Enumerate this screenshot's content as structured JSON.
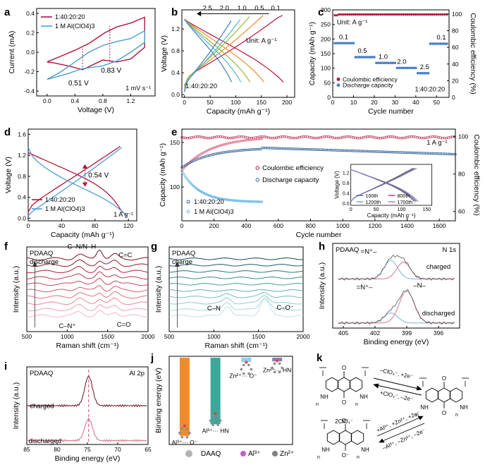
{
  "chart_data": [
    {
      "panel": "a",
      "type": "line",
      "xlabel": "Voltage (V)",
      "ylabel": "Current (mA)",
      "xlim": [
        -0.15,
        1.55
      ],
      "ylim": [
        -0.45,
        0.45
      ],
      "xticks": [
        0.0,
        0.4,
        0.8,
        1.2
      ],
      "yticks": [
        -0.4,
        -0.2,
        0.0,
        0.2,
        0.4
      ],
      "legend": [
        "1:40:20:20",
        "1 M Al(ClO4)3"
      ],
      "annotations": [
        "0.51 V",
        "0.83 V",
        "1 mV s⁻¹"
      ],
      "series": [
        {
          "name": "1:40:20:20",
          "x": [
            0,
            0.2,
            0.4,
            0.6,
            0.83,
            1.0,
            1.2,
            1.4,
            1.4,
            1.2,
            1.0,
            0.8,
            0.51,
            0.3,
            0.1,
            0
          ],
          "y": [
            -0.1,
            -0.04,
            0.02,
            0.09,
            0.2,
            0.26,
            0.3,
            0.36,
            0.05,
            -0.07,
            -0.1,
            -0.08,
            -0.18,
            -0.14,
            -0.11,
            -0.1
          ]
        },
        {
          "name": "1 M Al(ClO4)3",
          "x": [
            0,
            0.2,
            0.4,
            0.6,
            0.8,
            1.0,
            1.2,
            1.4,
            1.4,
            1.2,
            1.0,
            0.8,
            0.5,
            0.3,
            0.1,
            0
          ],
          "y": [
            -0.28,
            -0.2,
            -0.1,
            0.0,
            0.07,
            0.11,
            0.14,
            0.22,
            0.1,
            0.0,
            -0.09,
            -0.14,
            -0.17,
            -0.22,
            -0.26,
            -0.28
          ]
        }
      ]
    },
    {
      "panel": "b",
      "type": "line",
      "xlabel": "Capacity (mAh g⁻¹)",
      "ylabel": "Voltage (V)",
      "xlim": [
        -5,
        215
      ],
      "ylim": [
        -0.05,
        1.55
      ],
      "xticks": [
        0,
        50,
        100,
        150,
        200
      ],
      "yticks": [
        0.0,
        0.4,
        0.8,
        1.2
      ],
      "rate_labels": [
        "2.5",
        "2.0",
        "1.0",
        "0.5",
        "0.1"
      ],
      "unit_label": "Unit: A g⁻¹",
      "sample_label": "1:40:20:20",
      "series": [
        {
          "name": "0.1",
          "capacity": 193
        },
        {
          "name": "0.5",
          "capacity": 155
        },
        {
          "name": "1.0",
          "capacity": 128
        },
        {
          "name": "2.0",
          "capacity": 110
        },
        {
          "name": "2.5",
          "capacity": 92
        }
      ]
    },
    {
      "panel": "c",
      "type": "scatter",
      "xlabel": "Cycle number",
      "ylabel": "Capacity (mAh g⁻¹)",
      "y2label": "Coulombic efficiency (%)",
      "xlim": [
        0,
        56
      ],
      "ylim": [
        0,
        300
      ],
      "y2lim": [
        0,
        105
      ],
      "xticks": [
        0,
        10,
        20,
        30,
        40,
        50
      ],
      "yticks": [
        0,
        50,
        100,
        150,
        200,
        250,
        300
      ],
      "y2ticks": [
        0,
        20,
        40,
        60,
        80,
        100
      ],
      "unit_label": "Unit: A g⁻¹",
      "sample_label": "1:40:20:20",
      "legend": [
        "Coulombic efficiency",
        "Discharge capacity"
      ],
      "rate_labels": [
        "0.1",
        "0.5",
        "1.0",
        "2.0",
        "2.5",
        "0.1"
      ],
      "segments": [
        {
          "cycles": [
            1,
            10
          ],
          "capacity": 186
        },
        {
          "cycles": [
            11,
            20
          ],
          "capacity": 138
        },
        {
          "cycles": [
            21,
            30
          ],
          "capacity": 118
        },
        {
          "cycles": [
            31,
            40
          ],
          "capacity": 101
        },
        {
          "cycles": [
            41,
            46
          ],
          "capacity": 83
        },
        {
          "cycles": [
            47,
            55
          ],
          "capacity": 184
        }
      ],
      "efficiency": 99.5
    },
    {
      "panel": "d",
      "type": "line",
      "xlabel": "Capacity (mAh g⁻¹)",
      "ylabel": "Voltage (V)",
      "xlim": [
        0,
        130
      ],
      "ylim": [
        -0.05,
        1.7
      ],
      "xticks": [
        0,
        40,
        80,
        120
      ],
      "yticks": [
        0.0,
        0.4,
        0.8,
        1.2,
        1.6
      ],
      "legend": [
        "1:40:20:20",
        "1 M Al(ClO4)3"
      ],
      "annotations": [
        "0.54 V",
        "1 A g⁻¹"
      ]
    },
    {
      "panel": "e",
      "type": "scatter",
      "xlabel": "Cycle number",
      "ylabel": "Capacity (mAh g⁻¹)",
      "y2label": "Coulombic efficiency (%)",
      "xlim": [
        0,
        1700
      ],
      "ylim": [
        62,
        165
      ],
      "y2lim": [
        55,
        104
      ],
      "xticks": [
        0,
        200,
        400,
        600,
        800,
        1000,
        1200,
        1400,
        1600
      ],
      "yticks": [
        100,
        150
      ],
      "y2ticks": [
        60,
        80,
        100
      ],
      "legend": [
        "Coulombic efficiency",
        "Discharge capacity"
      ],
      "sample_legend": [
        "1:40:20:20",
        "1 M Al(ClO4)3"
      ],
      "rate_label": "1 A g⁻¹",
      "inset": {
        "xlabel": "Capacity (mAh g⁻¹)",
        "ylabel": "Voltage (V)",
        "xticks": [
          0,
          50,
          100,
          150
        ],
        "yticks": [
          0.0,
          0.4,
          0.8,
          1.2
        ],
        "legend": [
          "100th",
          "800th",
          "1200th",
          "1700th"
        ]
      },
      "series": [
        {
          "name": "Discharge 1:40:20:20",
          "x": [
            1,
            100,
            300,
            500,
            800,
            1000,
            1300,
            1700
          ],
          "y": [
            122,
            134,
            141,
            144,
            145,
            144,
            141,
            137
          ]
        },
        {
          "name": "Discharge 1 M Al(ClO4)3",
          "x": [
            1,
            50,
            100,
            200,
            300,
            400,
            500
          ],
          "y": [
            118,
            104,
            96,
            90,
            86,
            84,
            83
          ]
        }
      ]
    },
    {
      "panel": "f",
      "type": "line",
      "xlabel": "Raman shift (cm⁻¹)",
      "ylabel": "Intensity (a.u.)",
      "xticks": [
        500,
        1000,
        1500,
        2000
      ],
      "sample": "PDAAQ",
      "process": "discharge",
      "annotations": [
        "C–N/N–H",
        "C=C",
        "C–N⁺",
        "C=O"
      ]
    },
    {
      "panel": "g",
      "type": "line",
      "xlabel": "Raman shift (cm⁻¹)",
      "ylabel": "Intensity (a.u.)",
      "xticks": [
        500,
        1000,
        1500,
        2000
      ],
      "sample": "PDAAQ",
      "process": "charge",
      "annotations": [
        "C–N",
        "C–O⁻"
      ]
    },
    {
      "panel": "h",
      "type": "line",
      "xlabel": "Binding energy (eV)",
      "ylabel": "Intensity (a.u.)",
      "xticks": [
        405,
        402,
        399,
        396
      ],
      "sample": "PDAAQ",
      "element": "N 1s",
      "states": [
        "charged",
        "discharged"
      ],
      "annotations": [
        "=N⁺–",
        "=N⁺–",
        "–N–"
      ]
    },
    {
      "panel": "i",
      "type": "line",
      "xlabel": "Binding energy (eV)",
      "ylabel": "Intensity (a.u.)",
      "xticks": [
        85,
        80,
        75,
        70,
        65
      ],
      "sample": "PDAAQ",
      "element": "Al 2p",
      "states": [
        "charged",
        "discharged"
      ]
    },
    {
      "panel": "j",
      "type": "bar",
      "ylabel": "Binding energy (eV)",
      "categories": [
        "Al³⁺··· O⁻",
        "Al³⁺··· HN",
        "Zn²⁺··· O⁻",
        "Zn²⁺··· HN"
      ],
      "values": [
        -5.4,
        -4.6,
        -0.3,
        -0.25
      ],
      "colors": [
        "#f28a2a",
        "#3aa99a",
        "#8fd0f0",
        "#8d7ab8"
      ],
      "legend": [
        "DAAQ",
        "Al³⁺",
        "Zn²⁺"
      ]
    }
  ],
  "panel_labels": [
    "a",
    "b",
    "c",
    "d",
    "e",
    "f",
    "g",
    "h",
    "i",
    "j",
    "k"
  ],
  "scheme_k": {
    "top_forward": "–ClO₄⁻, +2e⁻",
    "top_reverse": "+ClO₄⁻, –2e⁻",
    "bottom_forward": "+Al³⁺, +Zn²⁺, +2e⁻",
    "bottom_reverse": "–Al³⁺, –Zn²⁺, –2e⁻",
    "counter_ion": "2ClO₄⁻",
    "n_label": "n"
  },
  "colors": {
    "crimson": "#b0143c",
    "blue": "#4c9ed6"
  }
}
